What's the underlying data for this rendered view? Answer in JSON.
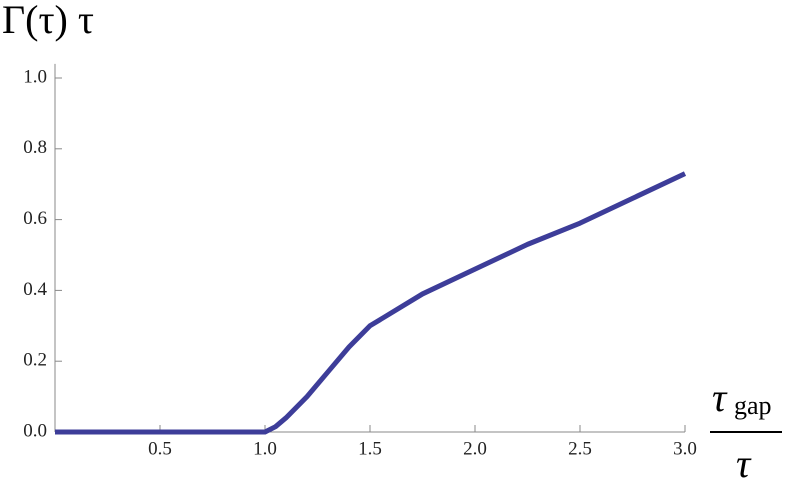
{
  "chart_data": {
    "type": "line",
    "ylabel": "Γ(τ) τ",
    "xlabel": {
      "numerator": "τ",
      "subscript": "gap",
      "denominator": "τ"
    },
    "series": [
      {
        "color": "#3d3d99",
        "x": [
          0,
          0.5,
          1.0,
          1.05,
          1.1,
          1.2,
          1.3,
          1.4,
          1.5,
          1.75,
          2.0,
          2.25,
          2.5,
          2.75,
          3.0
        ],
        "values": [
          0,
          0,
          0,
          0.015,
          0.04,
          0.1,
          0.17,
          0.24,
          0.3,
          0.39,
          0.46,
          0.53,
          0.59,
          0.66,
          0.73
        ]
      }
    ],
    "xlim": [
      0,
      3.0
    ],
    "ylim": [
      0,
      1.04
    ],
    "xticks": [
      0.5,
      {
        "value": 1,
        "label": "1.0"
      },
      1.5,
      {
        "value": 2,
        "label": "2.0"
      },
      2.5,
      {
        "value": 3,
        "label": "3.0"
      }
    ],
    "yticks": [
      {
        "value": 0,
        "label": "0.0"
      },
      0.2,
      0.4,
      0.6,
      0.8,
      {
        "value": 1,
        "label": "1.0"
      }
    ]
  }
}
